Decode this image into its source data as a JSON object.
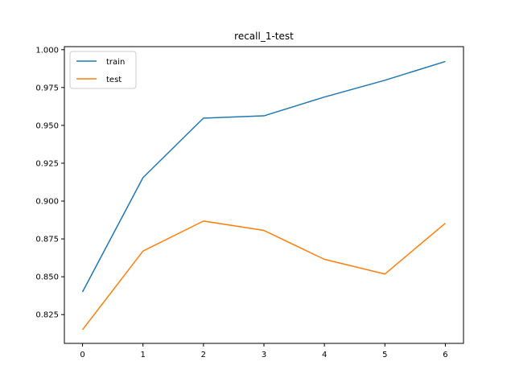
{
  "chart_data": {
    "type": "line",
    "title": "recall_1-test",
    "xlabel": "",
    "ylabel": "",
    "x": [
      0,
      1,
      2,
      3,
      4,
      5,
      6
    ],
    "xlim": [
      -0.3,
      6.3
    ],
    "ylim": [
      0.806,
      1.002
    ],
    "xticks": [
      "0",
      "1",
      "2",
      "3",
      "4",
      "5",
      "6"
    ],
    "yticks": [
      {
        "value": 0.825,
        "label": "0.825"
      },
      {
        "value": 0.85,
        "label": "0.850"
      },
      {
        "value": 0.875,
        "label": "0.875"
      },
      {
        "value": 0.9,
        "label": "0.900"
      },
      {
        "value": 0.925,
        "label": "0.925"
      },
      {
        "value": 0.95,
        "label": "0.950"
      },
      {
        "value": 0.975,
        "label": "0.975"
      },
      {
        "value": 1.0,
        "label": "1.000"
      }
    ],
    "grid": false,
    "legend_position": "top-left",
    "series": [
      {
        "name": "train",
        "color": "#1f77b4",
        "values": [
          0.84,
          0.9155,
          0.9548,
          0.9563,
          0.9687,
          0.9798,
          0.9922
        ]
      },
      {
        "name": "test",
        "color": "#ff7f0e",
        "values": [
          0.815,
          0.867,
          0.8868,
          0.8806,
          0.8615,
          0.8518,
          0.8854
        ]
      }
    ]
  }
}
